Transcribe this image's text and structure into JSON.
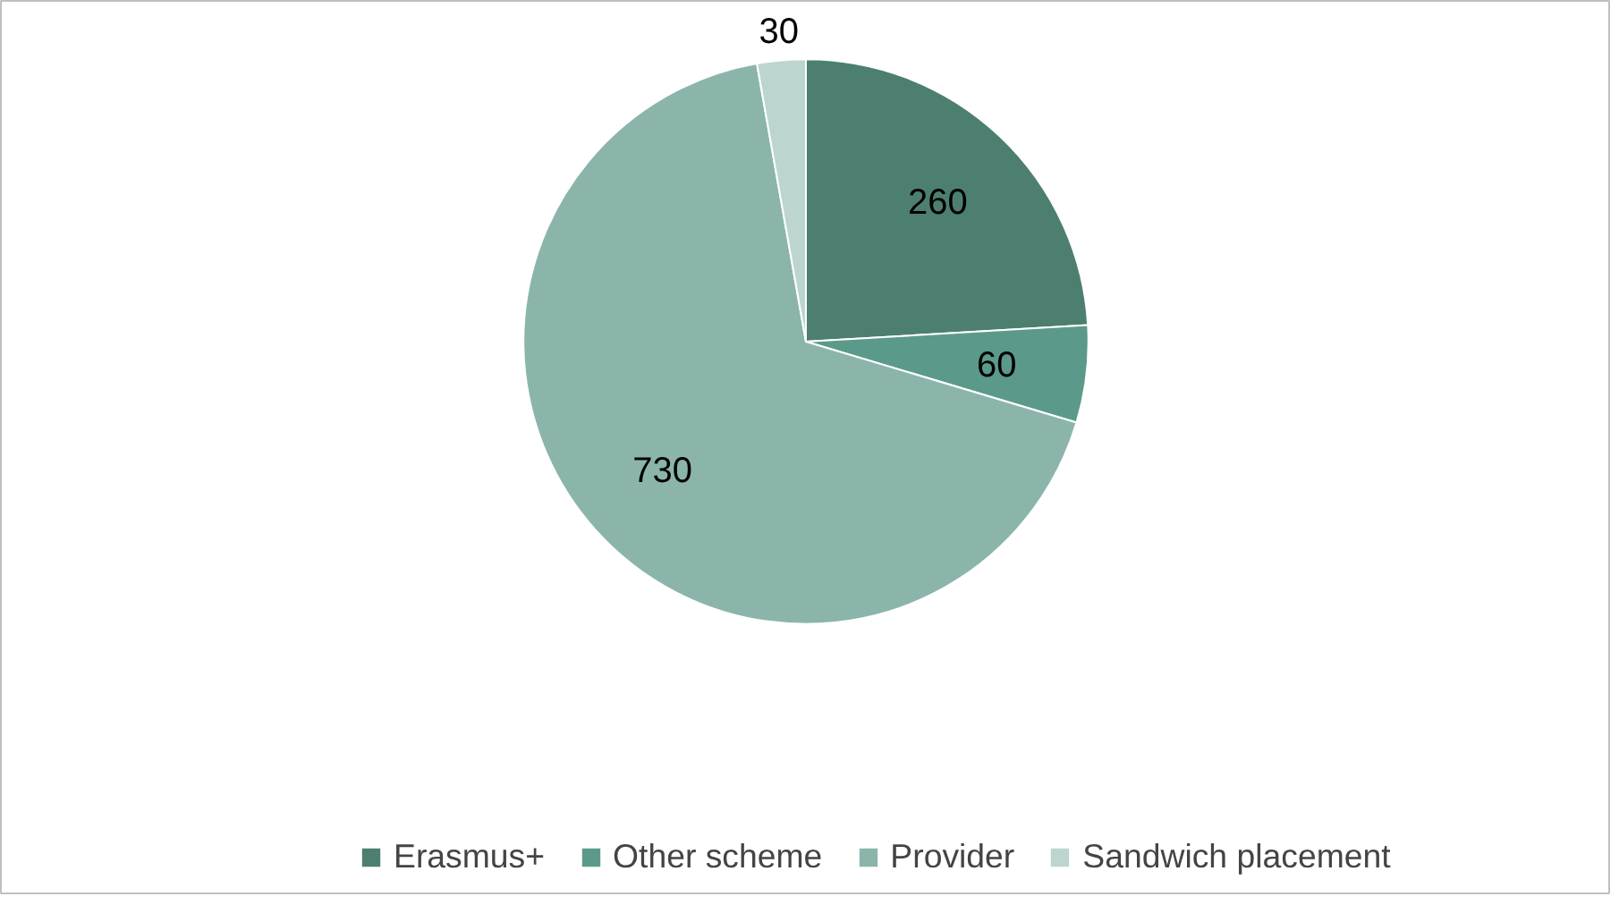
{
  "chart_data": {
    "type": "pie",
    "categories": [
      "Erasmus+",
      "Other scheme",
      "Provider",
      "Sandwich placement"
    ],
    "values": [
      260,
      60,
      730,
      30
    ],
    "colors": [
      "#4d7f70",
      "#5b9a8b",
      "#8bb5ab",
      "#bcd5cf"
    ],
    "data_labels": true,
    "legend": "bottom"
  }
}
